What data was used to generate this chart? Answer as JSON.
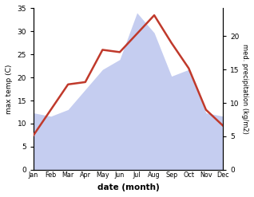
{
  "months": [
    "Jan",
    "Feb",
    "Mar",
    "Apr",
    "May",
    "Jun",
    "Jul",
    "Aug",
    "Sep",
    "Oct",
    "Nov",
    "Dec"
  ],
  "month_indices": [
    1,
    2,
    3,
    4,
    5,
    6,
    7,
    8,
    9,
    10,
    11,
    12
  ],
  "temp_max": [
    7.5,
    13.0,
    18.5,
    19.0,
    26.0,
    25.5,
    29.5,
    33.5,
    27.5,
    22.0,
    13.0,
    9.5
  ],
  "precipitation": [
    8.5,
    8.0,
    9.0,
    12.0,
    15.0,
    16.5,
    23.5,
    20.5,
    14.0,
    15.0,
    8.5,
    8.0
  ],
  "temp_color": "#c0392b",
  "precip_fill_color": "#c5cdf0",
  "xlabel": "date (month)",
  "ylabel_left": "max temp (C)",
  "ylabel_right": "med. precipitation (kg/m2)",
  "ylim_left": [
    0,
    35
  ],
  "ylim_right": [
    0,
    24.17
  ],
  "yticks_left": [
    0,
    5,
    10,
    15,
    20,
    25,
    30,
    35
  ],
  "yticks_right": [
    0,
    5,
    10,
    15,
    20
  ],
  "background_color": "#ffffff",
  "line_width": 1.8
}
